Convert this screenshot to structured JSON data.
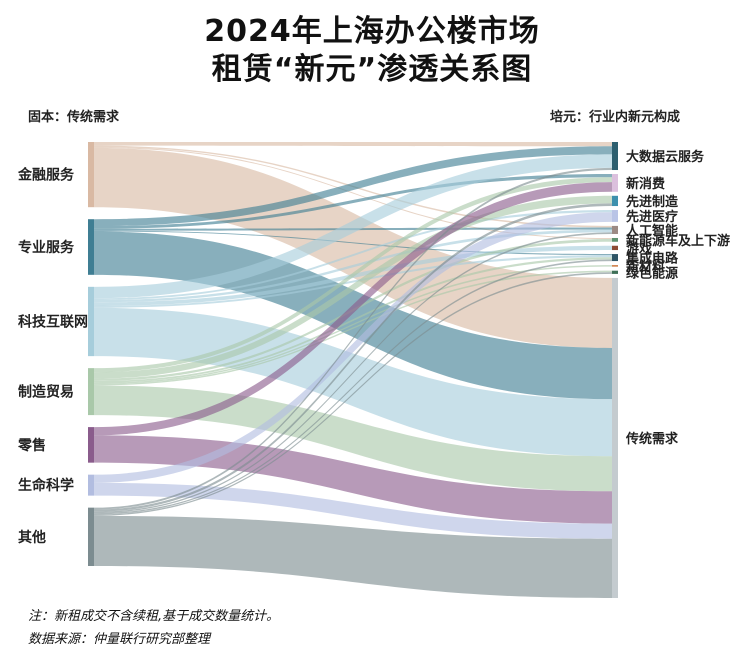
{
  "title": {
    "line1": "2024年上海办公楼市场",
    "line2": "租赁“新元”渗透关系图"
  },
  "headers": {
    "left": "固本：传统需求",
    "right": "培元：行业内新元构成"
  },
  "notes": {
    "line1": "注：新租成交不含续租,基于成交数量统计。",
    "line2": "数据来源：仲量联行研究部整理"
  },
  "chart_data": {
    "type": "sankey",
    "unit": "% of total leasing transactions (estimated)",
    "sources": [
      {
        "name": "金融服务",
        "color": "#d9b9a3"
      },
      {
        "name": "专业服务",
        "color": "#3f7e93"
      },
      {
        "name": "科技互联网",
        "color": "#a6cddb"
      },
      {
        "name": "制造贸易",
        "color": "#a9c8a9"
      },
      {
        "name": "零售",
        "color": "#8a5c8c"
      },
      {
        "name": "生命科学",
        "color": "#b2bde0"
      },
      {
        "name": "其他",
        "color": "#7c8c90"
      }
    ],
    "targets": [
      {
        "name": "大数据云服务",
        "color": "#2d5f6f"
      },
      {
        "name": "新消费",
        "color": "#dbc0dd"
      },
      {
        "name": "先进制造",
        "color": "#3d90ad"
      },
      {
        "name": "先进医疗",
        "color": "#b9c4e6"
      },
      {
        "name": "人工智能",
        "color": "#9c8a84"
      },
      {
        "name": "新能源车及上下游",
        "color": "#5f9270"
      },
      {
        "name": "游戏",
        "color": "#8e4a34"
      },
      {
        "name": "集成电路",
        "color": "#2e5566"
      },
      {
        "name": "新材料",
        "color": "#cf7f4a"
      },
      {
        "name": "绿色能源",
        "color": "#3f7058"
      },
      {
        "name": "传统需求",
        "color": "#c4cbcf"
      }
    ],
    "links": [
      {
        "source": "金融服务",
        "target": "大数据云服务",
        "value": 0.8
      },
      {
        "source": "金融服务",
        "target": "人工智能",
        "value": 0.3
      },
      {
        "source": "金融服务",
        "target": "新能源车及上下游",
        "value": 0.2
      },
      {
        "source": "金融服务",
        "target": "传统需求",
        "value": 13.0
      },
      {
        "source": "专业服务",
        "target": "大数据云服务",
        "value": 1.5
      },
      {
        "source": "专业服务",
        "target": "新消费",
        "value": 0.6
      },
      {
        "source": "专业服务",
        "target": "人工智能",
        "value": 0.4
      },
      {
        "source": "专业服务",
        "target": "集成电路",
        "value": 0.2
      },
      {
        "source": "专业服务",
        "target": "传统需求",
        "value": 9.5
      },
      {
        "source": "科技互联网",
        "target": "大数据云服务",
        "value": 2.5
      },
      {
        "source": "科技互联网",
        "target": "先进医疗",
        "value": 0.4
      },
      {
        "source": "科技互联网",
        "target": "人工智能",
        "value": 0.5
      },
      {
        "source": "科技互联网",
        "target": "游戏",
        "value": 0.8
      },
      {
        "source": "科技互联网",
        "target": "集成电路",
        "value": 0.4
      },
      {
        "source": "科技互联网",
        "target": "传统需求",
        "value": 10.6
      },
      {
        "source": "制造贸易",
        "target": "新消费",
        "value": 0.9
      },
      {
        "source": "制造贸易",
        "target": "先进制造",
        "value": 1.4
      },
      {
        "source": "制造贸易",
        "target": "新能源车及上下游",
        "value": 0.5
      },
      {
        "source": "制造贸易",
        "target": "集成电路",
        "value": 0.4
      },
      {
        "source": "制造贸易",
        "target": "新材料",
        "value": 0.3
      },
      {
        "source": "制造贸易",
        "target": "绿色能源",
        "value": 0.3
      },
      {
        "source": "制造贸易",
        "target": "传统需求",
        "value": 6.5
      },
      {
        "source": "零售",
        "target": "新消费",
        "value": 1.8
      },
      {
        "source": "零售",
        "target": "传统需求",
        "value": 6.0
      },
      {
        "source": "生命科学",
        "target": "先进医疗",
        "value": 1.8
      },
      {
        "source": "生命科学",
        "target": "传统需求",
        "value": 2.8
      },
      {
        "source": "其他",
        "target": "大数据云服务",
        "value": 0.4
      },
      {
        "source": "其他",
        "target": "先进制造",
        "value": 0.5
      },
      {
        "source": "其他",
        "target": "人工智能",
        "value": 0.3
      },
      {
        "source": "其他",
        "target": "集成电路",
        "value": 0.3
      },
      {
        "source": "其他",
        "target": "绿色能源",
        "value": 0.3
      },
      {
        "source": "其他",
        "target": "传统需求",
        "value": 11.0
      }
    ]
  }
}
